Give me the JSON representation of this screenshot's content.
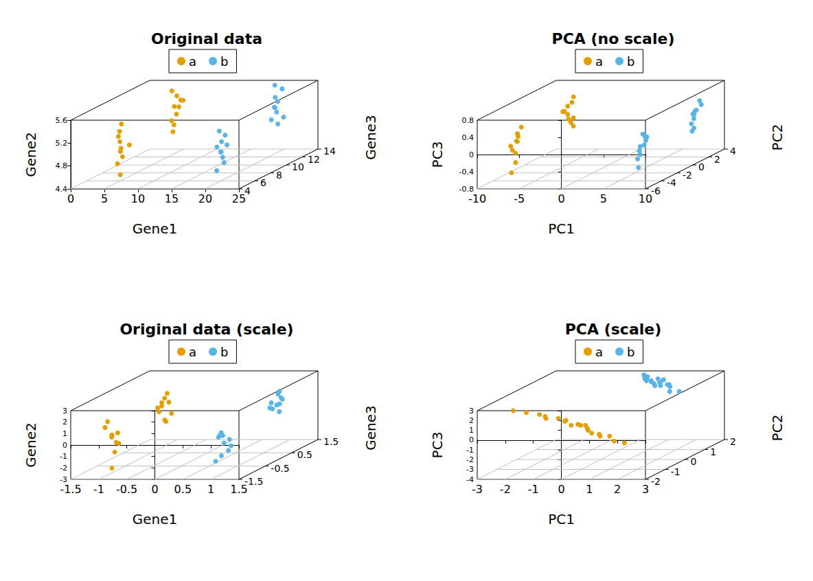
{
  "chart_data": [
    {
      "type": "scatter3d",
      "title": "Original data",
      "x_label": "Gene1",
      "y_label": "Gene2",
      "z_label": "Gene3",
      "xlim": [
        0,
        25
      ],
      "xticks": [
        0,
        5,
        10,
        15,
        20,
        25
      ],
      "ylim": [
        4.4,
        5.6
      ],
      "yticks": [
        4.4,
        4.8,
        5.2,
        5.6
      ],
      "zlim": [
        4,
        14
      ],
      "zticks": [
        4,
        6,
        8,
        10,
        12,
        14
      ],
      "grid": true,
      "legend": "top",
      "marker": "circle",
      "series": [
        {
          "name": "a",
          "color": "#E69F00",
          "x": [
            5.2,
            4.8,
            5.5,
            4.6,
            5.9,
            5.1,
            4.9,
            5.3,
            5.0,
            5.6,
            4.7,
            5.4,
            5.0,
            5.8,
            4.9,
            5.2,
            5.5,
            4.6,
            5.1,
            5.3
          ],
          "y": [
            5.1,
            4.9,
            5.3,
            4.7,
            5.0,
            5.2,
            4.5,
            5.4,
            4.8,
            5.0,
            5.5,
            5.2,
            5.0,
            5.3,
            4.9,
            5.4,
            5.1,
            5.2,
            4.8,
            5.3
          ],
          "z": [
            5.8,
            6.2,
            5.5,
            6.0,
            6.4,
            5.7,
            6.1,
            5.9,
            6.3,
            5.6,
            12.8,
            13.1,
            12.5,
            13.3,
            12.9,
            13.0,
            12.7,
            13.2,
            12.6,
            13.4
          ]
        },
        {
          "name": "b",
          "color": "#56B4E9",
          "x": [
            19.8,
            20.3,
            20.1,
            19.5,
            20.6,
            20.0,
            19.7,
            20.4,
            20.2,
            19.9,
            20.2,
            19.6,
            20.5,
            19.9,
            20.1,
            20.3,
            19.8,
            20.0,
            20.6,
            19.7
          ],
          "y": [
            4.9,
            5.1,
            4.7,
            5.0,
            5.2,
            4.8,
            4.6,
            5.0,
            5.3,
            4.9,
            5.3,
            5.0,
            5.5,
            5.2,
            4.9,
            5.4,
            5.1,
            5.6,
            5.0,
            5.2
          ],
          "z": [
            6.1,
            5.8,
            6.3,
            5.9,
            6.0,
            6.2,
            5.7,
            6.4,
            5.6,
            6.1,
            13.0,
            12.7,
            13.3,
            12.9,
            13.1,
            12.6,
            13.2,
            12.8,
            13.4,
            13.0
          ]
        }
      ]
    },
    {
      "type": "scatter3d",
      "title": "PCA (no scale)",
      "x_label": "PC1",
      "y_label": "PC3",
      "z_label": "PC2",
      "xlim": [
        -10,
        10
      ],
      "xticks": [
        -10,
        -5,
        0,
        5,
        10
      ],
      "ylim": [
        -0.8,
        0.8
      ],
      "yticks": [
        -0.8,
        -0.4,
        0,
        0.4,
        0.8
      ],
      "zlim": [
        -6,
        4
      ],
      "zticks": [
        -6,
        -4,
        -2,
        0,
        2,
        4
      ],
      "grid": true,
      "legend": "top",
      "marker": "circle",
      "series": [
        {
          "name": "a",
          "color": "#E69F00",
          "x": [
            -7.3,
            -7.8,
            -7.1,
            -7.6,
            -8.0,
            -7.4,
            -7.7,
            -7.2,
            -7.9,
            -7.5,
            -7.6,
            -7.2,
            -7.8,
            -7.4,
            -7.0,
            -7.7,
            -7.3,
            -7.9,
            -7.5,
            -7.1
          ],
          "y": [
            0.1,
            -0.2,
            0.3,
            -0.4,
            0.0,
            0.2,
            -0.6,
            0.4,
            -0.1,
            0.1,
            0.3,
            0.0,
            0.2,
            -0.1,
            0.4,
            0.1,
            -0.2,
            0.2,
            0.0,
            0.5
          ],
          "z": [
            -3.8,
            -3.5,
            -4.0,
            -3.7,
            -3.9,
            -3.6,
            -4.1,
            -3.4,
            -3.8,
            -3.7,
            2.9,
            3.2,
            2.7,
            3.1,
            2.8,
            3.0,
            3.3,
            2.6,
            2.9,
            3.1
          ]
        },
        {
          "name": "b",
          "color": "#56B4E9",
          "x": [
            7.4,
            7.8,
            7.1,
            7.6,
            7.9,
            7.3,
            7.7,
            7.2,
            8.0,
            7.5,
            7.6,
            7.2,
            7.8,
            7.4,
            7.0,
            7.7,
            7.3,
            7.9,
            7.5,
            7.1
          ],
          "y": [
            -0.1,
            0.2,
            -0.3,
            0.0,
            0.3,
            -0.2,
            0.1,
            -0.5,
            0.2,
            0.0,
            0.2,
            -0.1,
            0.4,
            0.1,
            -0.3,
            0.2,
            0.0,
            0.3,
            -0.2,
            0.1
          ],
          "z": [
            -4.0,
            -3.7,
            -3.9,
            -3.6,
            -4.1,
            -3.8,
            -3.5,
            -3.9,
            -3.7,
            -4.0,
            3.0,
            2.8,
            3.2,
            2.9,
            3.1,
            2.7,
            3.0,
            3.3,
            2.8,
            3.1
          ]
        }
      ]
    },
    {
      "type": "scatter3d",
      "title": "Original data (scale)",
      "x_label": "Gene1",
      "y_label": "Gene2",
      "z_label": "Gene3",
      "xlim": [
        -1.5,
        1.5
      ],
      "xticks": [
        -1.5,
        -1,
        -0.5,
        0,
        0.5,
        1,
        1.5
      ],
      "ylim": [
        -3,
        3
      ],
      "yticks": [
        -3,
        -2,
        -1,
        0,
        1,
        2,
        3
      ],
      "zlim": [
        -1.5,
        1.5
      ],
      "zticks": [
        -1.5,
        -0.5,
        0.5,
        1.5
      ],
      "grid": true,
      "legend": "top",
      "marker": "circle",
      "series": [
        {
          "name": "a",
          "color": "#E69F00",
          "x": [
            -1.0,
            -0.9,
            -1.1,
            -0.95,
            -1.05,
            -0.85,
            -1.0,
            -1.1,
            -0.9,
            -1.0,
            -1.0,
            -1.1,
            -0.9,
            -1.05,
            -0.95,
            -1.0,
            -1.1,
            -0.9,
            -1.0,
            -1.05
          ],
          "y": [
            0.3,
            -0.5,
            1.0,
            -1.2,
            0.0,
            0.6,
            -2.6,
            1.4,
            -0.3,
            0.2,
            1.2,
            0.4,
            -0.2,
            0.8,
            -0.6,
            1.5,
            0.0,
            0.9,
            -0.9,
            0.5
          ],
          "z": [
            -1.0,
            -0.95,
            -1.05,
            -1.0,
            -0.9,
            -1.1,
            -1.0,
            -0.95,
            -1.05,
            -1.0,
            1.0,
            0.95,
            1.05,
            1.0,
            0.9,
            1.1,
            1.0,
            0.95,
            1.05,
            1.0
          ]
        },
        {
          "name": "b",
          "color": "#56B4E9",
          "x": [
            1.0,
            0.9,
            1.1,
            0.95,
            1.05,
            1.0,
            0.9,
            1.1,
            1.0,
            0.85,
            1.0,
            1.1,
            0.9,
            1.05,
            0.95,
            1.0,
            1.1,
            0.9,
            1.0,
            1.05
          ],
          "y": [
            -0.4,
            0.2,
            -1.0,
            0.5,
            -0.2,
            -1.4,
            0.1,
            -0.7,
            0.3,
            -2.0,
            0.6,
            1.3,
            0.2,
            1.8,
            0.9,
            -0.1,
            1.1,
            0.4,
            1.5,
            0.7
          ],
          "z": [
            -1.0,
            -0.95,
            -1.05,
            -1.0,
            -0.9,
            -1.1,
            -1.0,
            -0.95,
            -1.05,
            -1.0,
            1.0,
            0.95,
            1.05,
            1.0,
            0.9,
            1.1,
            1.0,
            0.95,
            1.05,
            1.0
          ]
        }
      ]
    },
    {
      "type": "scatter3d",
      "title": "PCA (scale)",
      "x_label": "PC1",
      "y_label": "PC3",
      "z_label": "PC2",
      "xlim": [
        -3,
        3
      ],
      "xticks": [
        -3,
        -2,
        -1,
        0,
        1,
        2,
        3
      ],
      "ylim": [
        -4,
        3
      ],
      "yticks": [
        -4,
        -3,
        -2,
        -1,
        0,
        1,
        2,
        3
      ],
      "zlim": [
        -2,
        2
      ],
      "zticks": [
        -2,
        -1,
        0,
        1,
        2
      ],
      "grid": true,
      "legend": "top",
      "marker": "circle",
      "series": [
        {
          "name": "a",
          "color": "#E69F00",
          "x": [
            -2.0,
            -1.6,
            -1.2,
            -0.9,
            -0.6,
            -0.3,
            0.0,
            0.2,
            0.5,
            0.8,
            1.0,
            1.3,
            1.6,
            1.9,
            -0.4,
            0.1,
            0.6,
            -1.0,
            0.3,
            1.1
          ],
          "y": [
            2.6,
            2.3,
            2.0,
            1.7,
            1.5,
            1.3,
            1.0,
            0.8,
            0.6,
            0.3,
            0.1,
            -0.2,
            -0.5,
            -0.8,
            1.2,
            0.9,
            0.5,
            1.8,
            0.7,
            0.0
          ],
          "z": [
            -1.6,
            -1.5,
            -1.4,
            -1.5,
            -1.3,
            -1.4,
            -1.5,
            -1.3,
            -1.4,
            -1.6,
            -1.5,
            -1.4,
            -1.6,
            -1.5,
            -1.2,
            -1.3,
            -1.5,
            -1.4,
            -1.2,
            -1.6
          ]
        },
        {
          "name": "b",
          "color": "#56B4E9",
          "x": [
            0.3,
            0.6,
            0.8,
            0.5,
            1.1,
            0.9,
            0.7,
            1.4,
            0.4,
            1.0,
            0.2,
            0.7,
            1.2,
            0.5,
            0.9,
            1.6,
            0.3,
            0.8,
            0.6,
            1.1
          ],
          "y": [
            2.4,
            2.2,
            2.0,
            2.5,
            1.8,
            2.1,
            2.3,
            1.4,
            2.6,
            1.9,
            2.7,
            2.0,
            1.6,
            2.4,
            2.2,
            1.2,
            2.5,
            1.9,
            2.3,
            1.7
          ],
          "z": [
            1.8,
            1.7,
            1.9,
            1.6,
            1.8,
            1.7,
            1.9,
            1.5,
            1.8,
            1.6,
            1.9,
            1.7,
            1.8,
            1.6,
            1.9,
            1.7,
            1.8,
            1.6,
            1.7,
            1.9
          ]
        }
      ]
    }
  ]
}
